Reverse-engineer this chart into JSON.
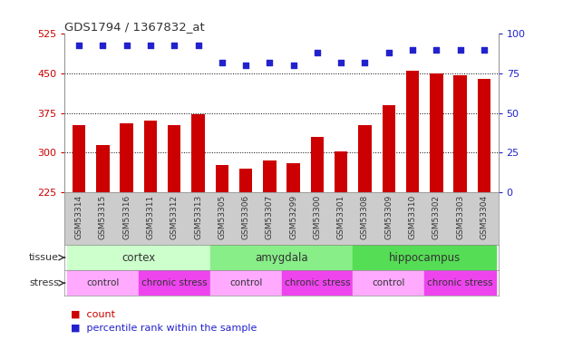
{
  "title": "GDS1794 / 1367832_at",
  "samples": [
    "GSM53314",
    "GSM53315",
    "GSM53316",
    "GSM53311",
    "GSM53312",
    "GSM53313",
    "GSM53305",
    "GSM53306",
    "GSM53307",
    "GSM53299",
    "GSM53300",
    "GSM53301",
    "GSM53308",
    "GSM53309",
    "GSM53310",
    "GSM53302",
    "GSM53303",
    "GSM53304"
  ],
  "counts": [
    352,
    315,
    355,
    360,
    352,
    373,
    276,
    270,
    285,
    280,
    330,
    303,
    352,
    390,
    455,
    450,
    447,
    440
  ],
  "percentiles": [
    93,
    93,
    93,
    93,
    93,
    93,
    82,
    80,
    82,
    80,
    88,
    82,
    82,
    88,
    90,
    90,
    90,
    90
  ],
  "bar_color": "#cc0000",
  "dot_color": "#2222cc",
  "ylim_left": [
    225,
    525
  ],
  "ylim_right": [
    0,
    100
  ],
  "yticks_left": [
    225,
    300,
    375,
    450,
    525
  ],
  "yticks_right": [
    0,
    25,
    50,
    75,
    100
  ],
  "grid_ticks": [
    300,
    375,
    450
  ],
  "tissue_groups": [
    {
      "label": "cortex",
      "start": 0,
      "end": 6,
      "color": "#ccffcc"
    },
    {
      "label": "amygdala",
      "start": 6,
      "end": 12,
      "color": "#88ee88"
    },
    {
      "label": "hippocampus",
      "start": 12,
      "end": 18,
      "color": "#55dd55"
    }
  ],
  "stress_groups": [
    {
      "label": "control",
      "start": 0,
      "end": 3,
      "color": "#ffaaff"
    },
    {
      "label": "chronic stress",
      "start": 3,
      "end": 6,
      "color": "#ee44ee"
    },
    {
      "label": "control",
      "start": 6,
      "end": 9,
      "color": "#ffaaff"
    },
    {
      "label": "chronic stress",
      "start": 9,
      "end": 12,
      "color": "#ee44ee"
    },
    {
      "label": "control",
      "start": 12,
      "end": 15,
      "color": "#ffaaff"
    },
    {
      "label": "chronic stress",
      "start": 15,
      "end": 18,
      "color": "#ee44ee"
    }
  ],
  "tissue_row_label": "tissue",
  "stress_row_label": "stress",
  "legend_count_label": "count",
  "legend_percentile_label": "percentile rank within the sample",
  "background_color": "#ffffff",
  "dot_pct_value": 93,
  "xticklabel_bg": "#cccccc"
}
